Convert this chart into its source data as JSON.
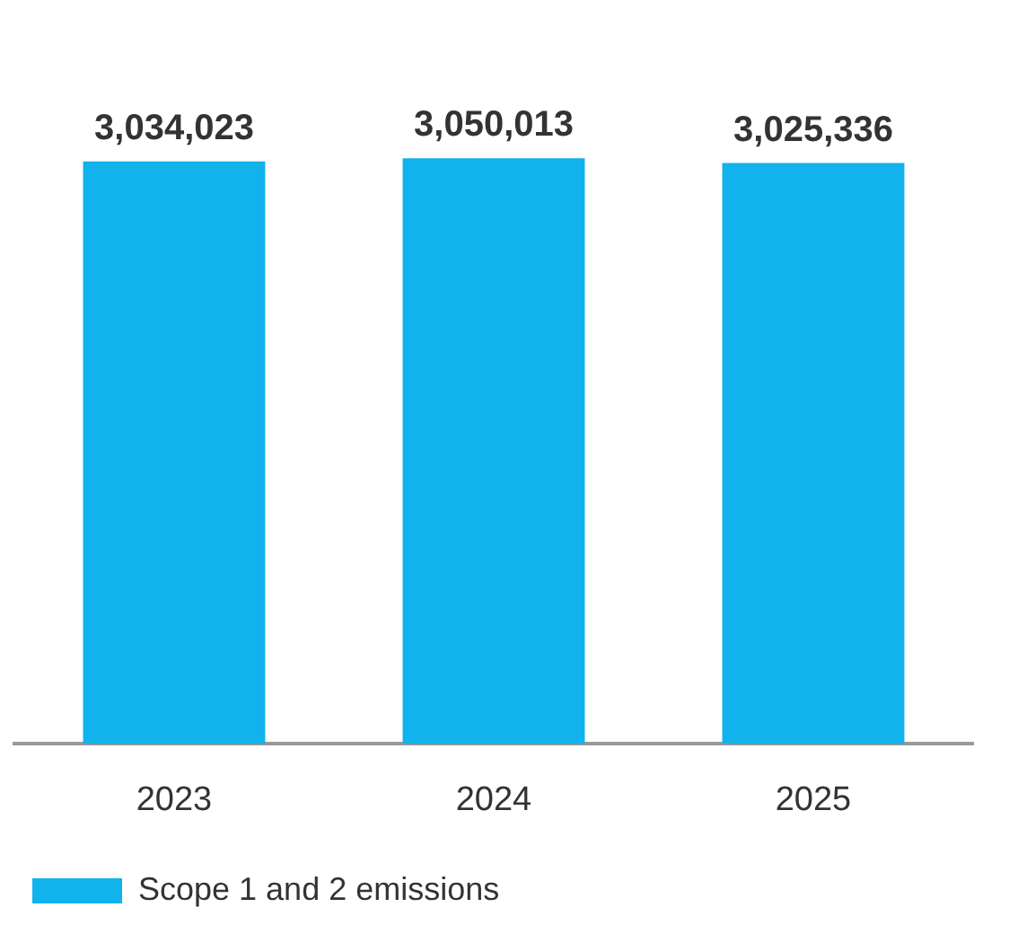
{
  "chart_data": {
    "type": "bar",
    "categories": [
      "2023",
      "2024",
      "2025"
    ],
    "series": [
      {
        "name": "Scope 1 and 2 emissions",
        "color": "#12b2ec",
        "values": [
          3034023,
          3050013,
          3025336
        ],
        "value_labels": [
          "3,034,023",
          "3,050,013",
          "3,025,336"
        ]
      }
    ],
    "grid": false,
    "legend": "bottom",
    "tick_labels": "x"
  }
}
